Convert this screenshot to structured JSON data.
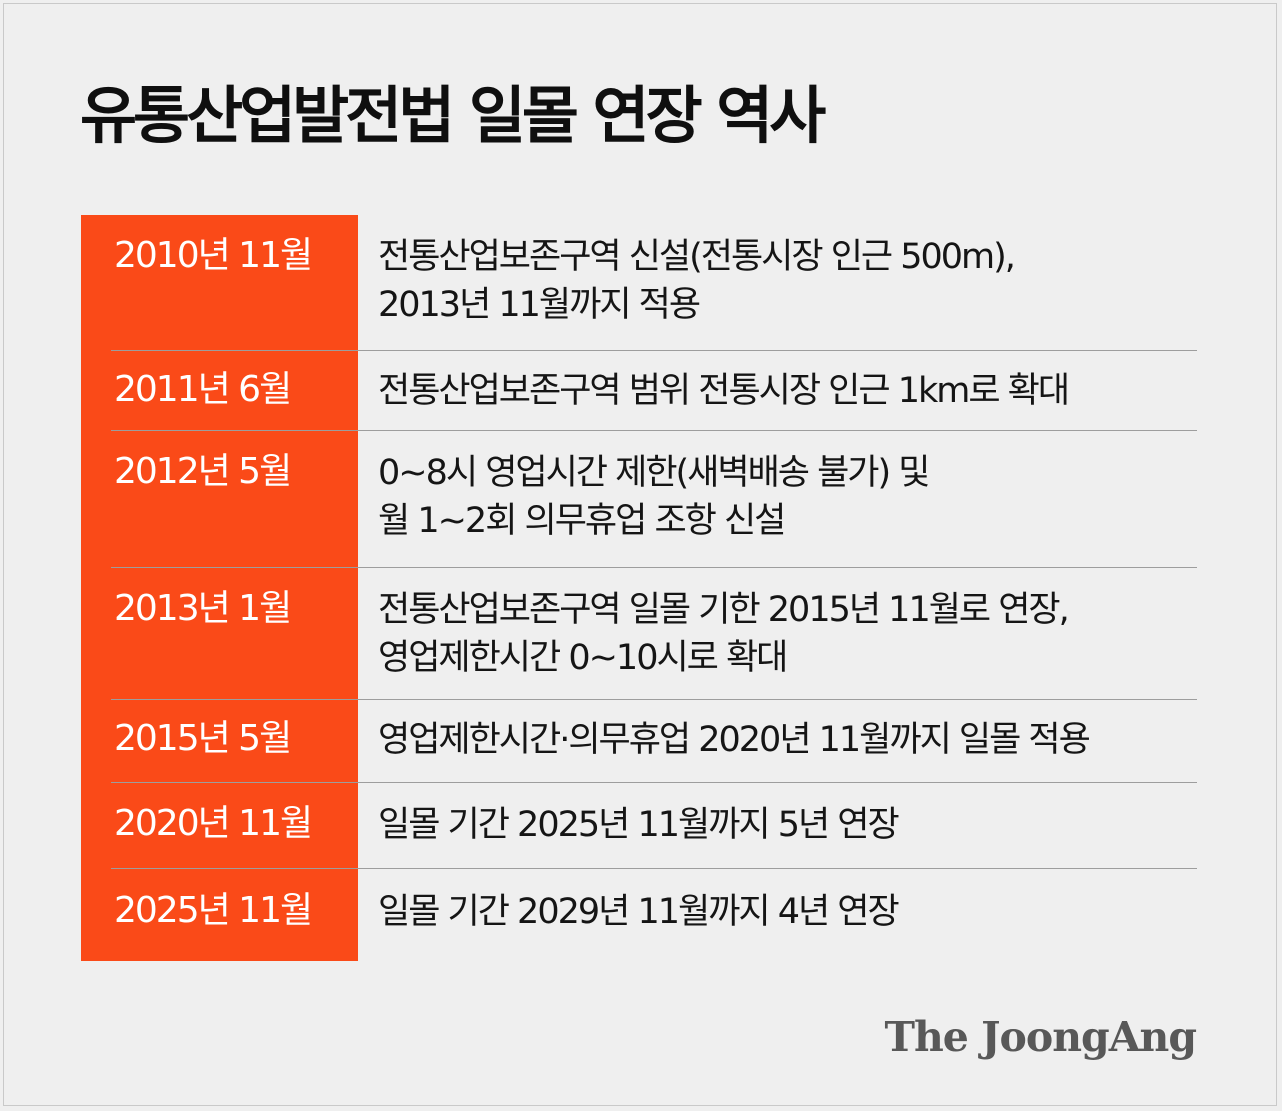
{
  "title": "유통산업발전법 일몰 연장 역사",
  "timeline": [
    {
      "date": "2010년 11월",
      "lines": [
        "전통산업보존구역 신설(전통시장 인근 500m),",
        "2013년 11월까지 적용"
      ]
    },
    {
      "date": "2011년 6월",
      "lines": [
        "전통산업보존구역 범위 전통시장 인근 1km로 확대"
      ]
    },
    {
      "date": "2012년 5월",
      "lines": [
        "0~8시 영업시간 제한(새벽배송 불가) 및",
        "월 1~2회 의무휴업 조항 신설"
      ]
    },
    {
      "date": "2013년 1월",
      "lines": [
        "전통산업보존구역 일몰 기한 2015년 11월로 연장,",
        "영업제한시간 0~10시로 확대"
      ]
    },
    {
      "date": "2015년 5월",
      "lines": [
        "영업제한시간·의무휴업 2020년 11월까지 일몰 적용"
      ]
    },
    {
      "date": "2020년 11월",
      "lines": [
        "일몰 기간 2025년 11월까지 5년 연장"
      ]
    },
    {
      "date": "2025년 11월",
      "lines": [
        "일몰 기간 2029년 11월까지 4년 연장"
      ]
    }
  ],
  "logo": "The JoongAng",
  "colors": {
    "accent": "#fa4a18",
    "background": "#efefef",
    "text": "#111111",
    "divider": "#9d9d9d",
    "logo": "#585858"
  }
}
